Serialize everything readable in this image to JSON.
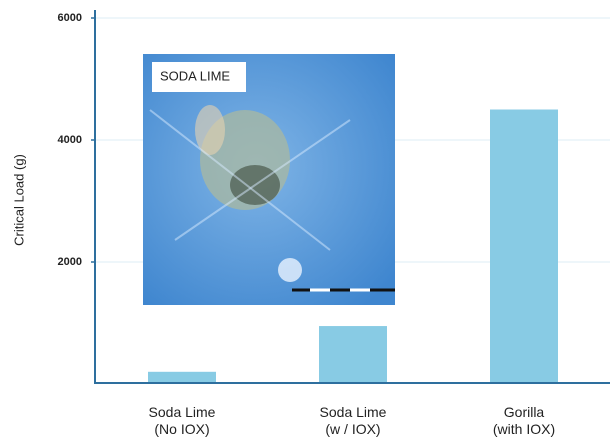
{
  "chart_data": {
    "type": "bar",
    "y_label": "Critical Load (g)",
    "categories": [
      "Soda Lime\n(No IOX)",
      "Soda Lime\n(w / IOX)",
      "Gorilla\n(with IOX)"
    ],
    "values": [
      200,
      950,
      4500
    ],
    "color": "#88cbe4",
    "ylim": [
      0,
      6000
    ],
    "yticks": [
      2000,
      4000,
      6000
    ],
    "grid": true,
    "annotations": [
      "SODA LIME"
    ]
  }
}
